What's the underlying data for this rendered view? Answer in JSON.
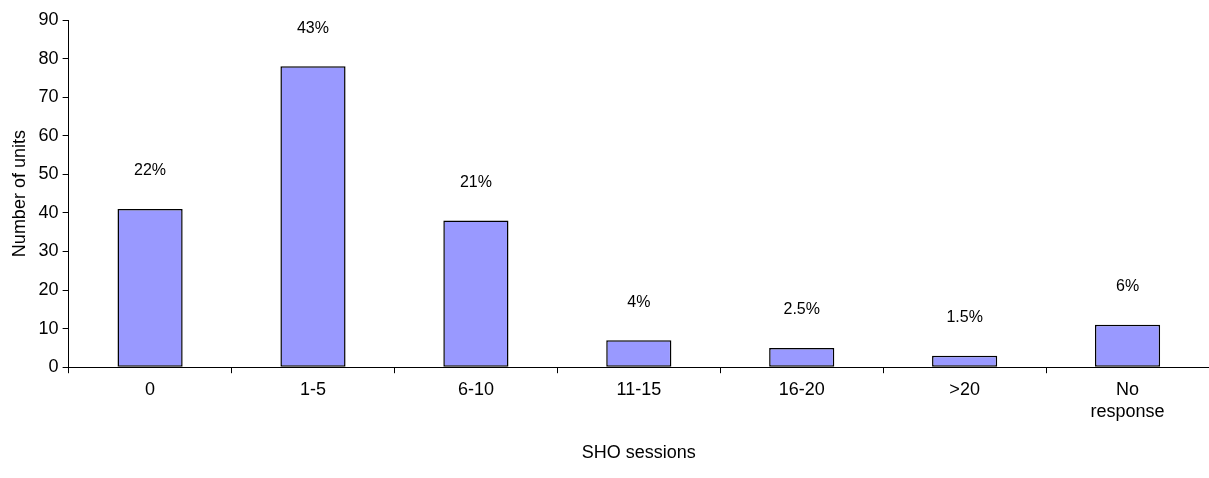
{
  "chart_data": {
    "type": "bar",
    "xlabel": "SHO sessions",
    "ylabel": "Number of units",
    "categories": [
      "0",
      "1-5",
      "6-10",
      "11-15",
      "16-20",
      ">20",
      "No response"
    ],
    "values": [
      41,
      78,
      38,
      7,
      5,
      3,
      11
    ],
    "annotations": [
      "22%",
      "43%",
      "21%",
      "4%",
      "2.5%",
      "1.5%",
      "6%"
    ],
    "color": "#9999ff",
    "ylim": [
      0,
      90
    ],
    "yticks": [
      0,
      10,
      20,
      30,
      40,
      50,
      60,
      70,
      80,
      90
    ],
    "grid": false,
    "legend": false
  }
}
